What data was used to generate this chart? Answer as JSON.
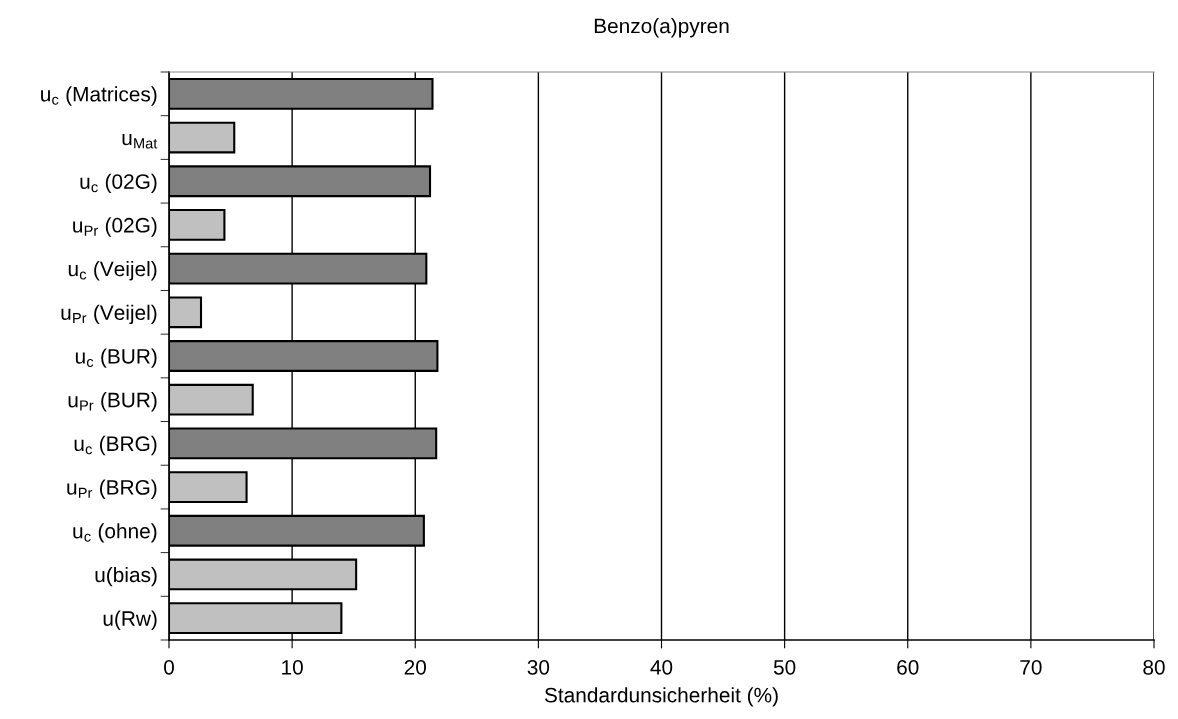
{
  "chart_data": {
    "type": "bar",
    "orientation": "horizontal",
    "title": "Benzo(a)pyren",
    "xlabel": "Standardunsicherheit (%)",
    "categories": [
      "u$_{c}$ (Matrices)",
      "u$_{Mat}$",
      "u$_{c}$ (02G)",
      "u$_{Pr}$ (02G)",
      "u$_{c}$ (Veijel)",
      "u$_{Pr}$ (Veijel)",
      "u$_{c}$ (BUR)",
      "u$_{Pr}$ (BUR)",
      "u$_{c}$ (BRG)",
      "u$_{Pr}$ (BRG)",
      "u$_{c}$ (ohne)",
      "u(bias)",
      "u(Rw)"
    ],
    "values": [
      21.4,
      5.3,
      21.2,
      4.5,
      20.9,
      2.6,
      21.8,
      6.8,
      21.7,
      6.3,
      20.7,
      15.2,
      14.0
    ],
    "colors": [
      "#808080",
      "#c0c0c0",
      "#808080",
      "#c0c0c0",
      "#808080",
      "#c0c0c0",
      "#808080",
      "#c0c0c0",
      "#808080",
      "#c0c0c0",
      "#808080",
      "#c0c0c0",
      "#c0c0c0"
    ],
    "xlim": [
      0,
      80
    ],
    "xticks": [
      0,
      10,
      20,
      30,
      40,
      50,
      60,
      70,
      80
    ],
    "grid": "x",
    "legend": false
  }
}
